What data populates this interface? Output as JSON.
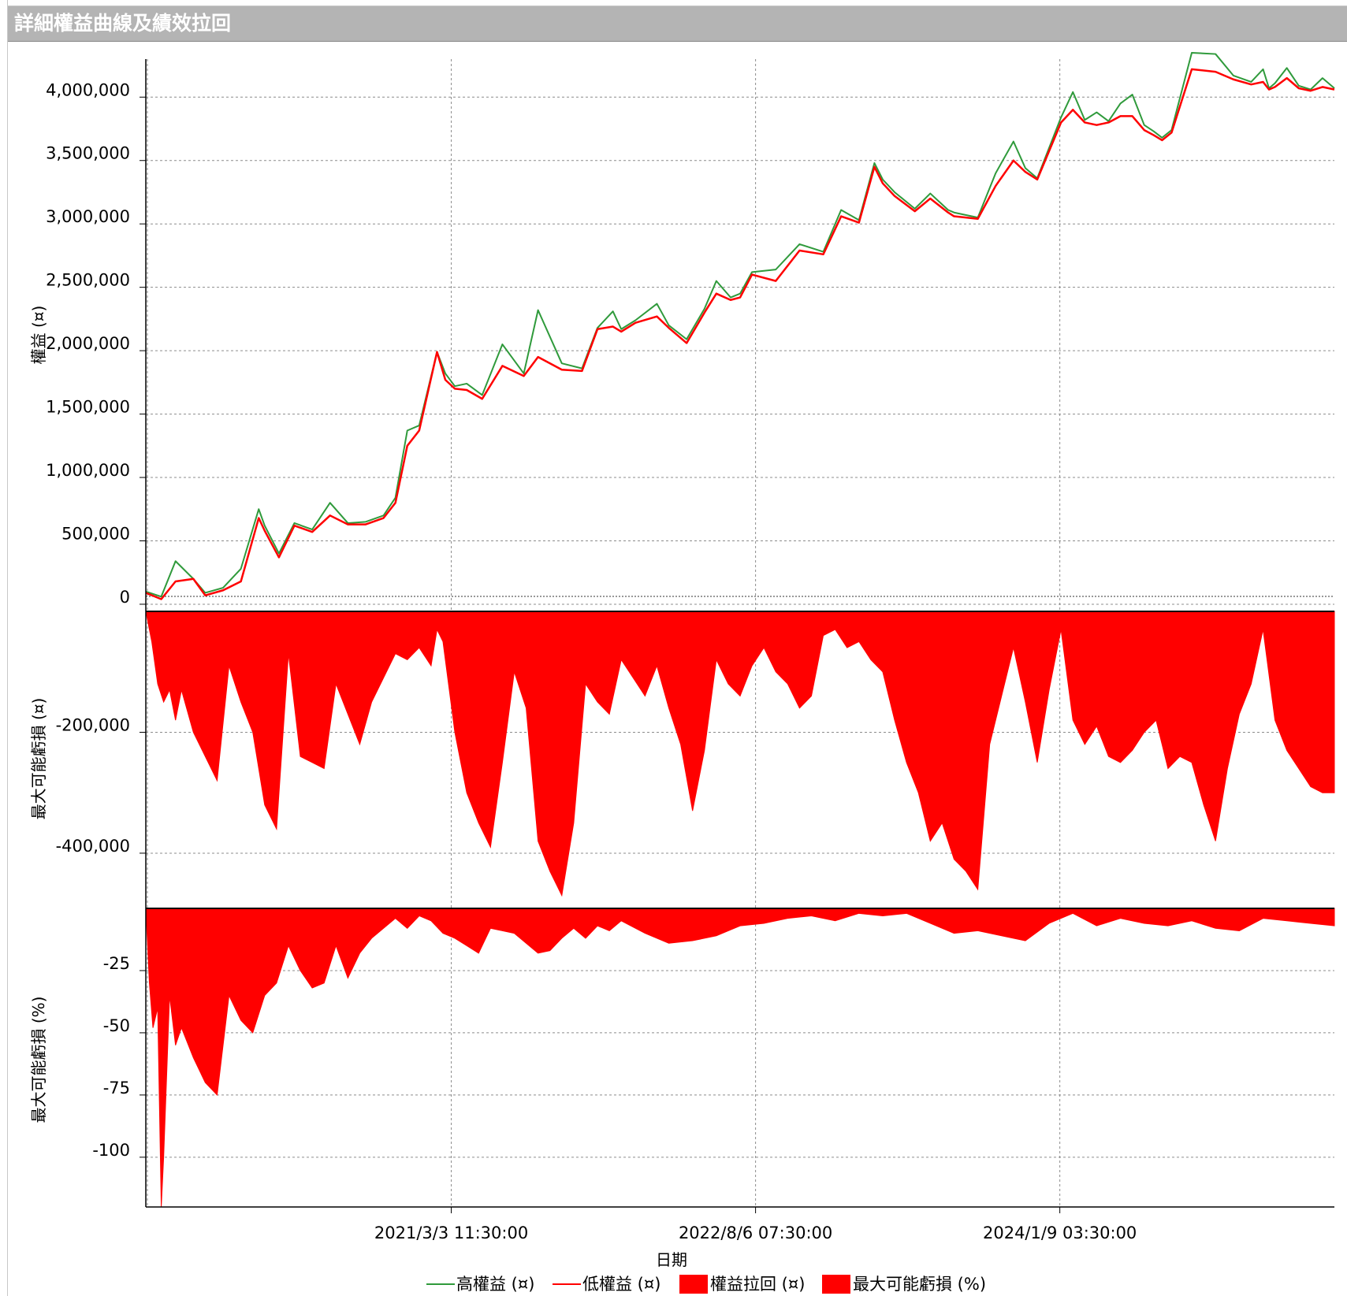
{
  "window": {
    "title": "詳細權益曲線及績效拉回"
  },
  "colors": {
    "high_equity": "#2f9a3b",
    "low_equity": "#ff0000",
    "drawdown_fill": "#ff0000",
    "grid": "#8c8c8c",
    "axis": "#000000"
  },
  "chart_data": [
    {
      "type": "line",
      "title": "",
      "ylabel": "權益 (¤)",
      "ylim": [
        -50000,
        4300000
      ],
      "yticks": [
        0,
        500000,
        1000000,
        1500000,
        2000000,
        2500000,
        3000000,
        3500000,
        4000000
      ],
      "ytick_labels": [
        "0",
        "500,000",
        "1,000,000",
        "1,500,000",
        "2,000,000",
        "2,500,000",
        "3,000,000",
        "3,500,000",
        "4,000,000"
      ],
      "x": [
        0,
        0.013,
        0.025,
        0.04,
        0.05,
        0.065,
        0.08,
        0.095,
        0.1,
        0.112,
        0.125,
        0.14,
        0.155,
        0.17,
        0.185,
        0.2,
        0.21,
        0.22,
        0.23,
        0.245,
        0.252,
        0.26,
        0.27,
        0.283,
        0.3,
        0.318,
        0.33,
        0.35,
        0.367,
        0.38,
        0.393,
        0.4,
        0.412,
        0.43,
        0.44,
        0.455,
        0.47,
        0.48,
        0.492,
        0.5,
        0.51,
        0.53,
        0.55,
        0.57,
        0.585,
        0.6,
        0.613,
        0.62,
        0.63,
        0.647,
        0.66,
        0.675,
        0.68,
        0.7,
        0.715,
        0.73,
        0.74,
        0.75,
        0.77,
        0.78,
        0.79,
        0.8,
        0.81,
        0.82,
        0.83,
        0.84,
        0.848,
        0.855,
        0.863,
        0.88,
        0.9,
        0.915,
        0.93,
        0.94,
        0.945,
        0.95,
        0.96,
        0.97,
        0.98,
        0.99,
        1.0
      ],
      "series": [
        {
          "name": "高權益 (¤)",
          "values": [
            100000,
            60000,
            340000,
            200000,
            90000,
            130000,
            280000,
            750000,
            620000,
            400000,
            640000,
            590000,
            800000,
            640000,
            650000,
            700000,
            840000,
            1370000,
            1410000,
            1990000,
            1820000,
            1720000,
            1740000,
            1650000,
            2050000,
            1820000,
            2320000,
            1900000,
            1860000,
            2180000,
            2310000,
            2170000,
            2240000,
            2370000,
            2200000,
            2090000,
            2330000,
            2550000,
            2420000,
            2450000,
            2620000,
            2640000,
            2840000,
            2780000,
            3110000,
            3030000,
            3480000,
            3350000,
            3250000,
            3120000,
            3240000,
            3110000,
            3090000,
            3050000,
            3400000,
            3650000,
            3440000,
            3360000,
            3840000,
            4040000,
            3820000,
            3880000,
            3810000,
            3950000,
            4020000,
            3780000,
            3730000,
            3680000,
            3740000,
            4350000,
            4340000,
            4170000,
            4120000,
            4220000,
            4070000,
            4110000,
            4230000,
            4090000,
            4060000,
            4150000,
            4070000
          ]
        },
        {
          "name": "低權益 (¤)",
          "values": [
            90000,
            40000,
            180000,
            200000,
            70000,
            110000,
            180000,
            680000,
            580000,
            370000,
            620000,
            570000,
            700000,
            630000,
            630000,
            680000,
            800000,
            1250000,
            1370000,
            1990000,
            1770000,
            1700000,
            1690000,
            1620000,
            1880000,
            1800000,
            1950000,
            1850000,
            1840000,
            2170000,
            2190000,
            2150000,
            2220000,
            2270000,
            2180000,
            2060000,
            2300000,
            2450000,
            2400000,
            2420000,
            2600000,
            2550000,
            2790000,
            2760000,
            3060000,
            3010000,
            3450000,
            3320000,
            3220000,
            3100000,
            3200000,
            3090000,
            3060000,
            3040000,
            3300000,
            3500000,
            3410000,
            3350000,
            3800000,
            3900000,
            3800000,
            3780000,
            3800000,
            3850000,
            3850000,
            3740000,
            3700000,
            3660000,
            3720000,
            4220000,
            4200000,
            4140000,
            4100000,
            4120000,
            4060000,
            4080000,
            4150000,
            4070000,
            4050000,
            4080000,
            4060000
          ]
        }
      ]
    },
    {
      "type": "area",
      "title": "",
      "ylabel": "最大可能虧損 (¤)",
      "ylim": [
        -490000,
        0
      ],
      "yticks": [
        -200000,
        -400000
      ],
      "ytick_labels": [
        "-200,000",
        "-400,000"
      ],
      "x": [
        0,
        0.005,
        0.01,
        0.015,
        0.02,
        0.025,
        0.03,
        0.04,
        0.05,
        0.06,
        0.07,
        0.08,
        0.09,
        0.1,
        0.11,
        0.12,
        0.13,
        0.14,
        0.15,
        0.16,
        0.17,
        0.18,
        0.19,
        0.2,
        0.21,
        0.22,
        0.23,
        0.24,
        0.245,
        0.25,
        0.26,
        0.27,
        0.28,
        0.29,
        0.3,
        0.31,
        0.32,
        0.33,
        0.34,
        0.35,
        0.36,
        0.37,
        0.38,
        0.39,
        0.4,
        0.41,
        0.42,
        0.43,
        0.44,
        0.45,
        0.46,
        0.47,
        0.48,
        0.49,
        0.5,
        0.51,
        0.52,
        0.53,
        0.54,
        0.55,
        0.56,
        0.57,
        0.58,
        0.59,
        0.6,
        0.61,
        0.62,
        0.63,
        0.64,
        0.65,
        0.66,
        0.67,
        0.68,
        0.69,
        0.7,
        0.71,
        0.72,
        0.73,
        0.74,
        0.75,
        0.76,
        0.77,
        0.78,
        0.79,
        0.8,
        0.81,
        0.82,
        0.83,
        0.84,
        0.85,
        0.86,
        0.87,
        0.88,
        0.89,
        0.9,
        0.91,
        0.92,
        0.93,
        0.94,
        0.95,
        0.96,
        0.97,
        0.98,
        0.99,
        1.0
      ],
      "series": [
        {
          "name": "權益拉回 (¤)",
          "values": [
            0,
            -50000,
            -120000,
            -150000,
            -130000,
            -180000,
            -130000,
            -200000,
            -240000,
            -280000,
            -90000,
            -150000,
            -200000,
            -320000,
            -360000,
            -70000,
            -240000,
            -250000,
            -260000,
            -120000,
            -170000,
            -220000,
            -150000,
            -110000,
            -70000,
            -80000,
            -60000,
            -90000,
            -30000,
            -50000,
            -200000,
            -300000,
            -350000,
            -390000,
            -250000,
            -100000,
            -160000,
            -380000,
            -430000,
            -470000,
            -350000,
            -120000,
            -150000,
            -170000,
            -80000,
            -110000,
            -140000,
            -90000,
            -160000,
            -220000,
            -330000,
            -230000,
            -80000,
            -120000,
            -140000,
            -90000,
            -60000,
            -100000,
            -120000,
            -160000,
            -140000,
            -40000,
            -30000,
            -60000,
            -50000,
            -80000,
            -100000,
            -180000,
            -250000,
            -300000,
            -380000,
            -350000,
            -410000,
            -430000,
            -460000,
            -220000,
            -140000,
            -60000,
            -150000,
            -250000,
            -130000,
            -30000,
            -180000,
            -220000,
            -190000,
            -240000,
            -250000,
            -230000,
            -200000,
            -180000,
            -260000,
            -240000,
            -250000,
            -320000,
            -380000,
            -260000,
            -170000,
            -120000,
            -30000,
            -180000,
            -230000,
            -260000,
            -290000,
            -300000,
            -300000
          ]
        }
      ]
    },
    {
      "type": "area",
      "title": "",
      "ylabel": "最大可能虧損 (%)",
      "ylim": [
        -120,
        0
      ],
      "yticks": [
        -25,
        -50,
        -75,
        -100
      ],
      "ytick_labels": [
        "-25",
        "-50",
        "-75",
        "-100"
      ],
      "x": [
        0,
        0.003,
        0.006,
        0.01,
        0.013,
        0.015,
        0.02,
        0.025,
        0.03,
        0.04,
        0.05,
        0.06,
        0.07,
        0.08,
        0.09,
        0.1,
        0.11,
        0.12,
        0.13,
        0.14,
        0.15,
        0.16,
        0.17,
        0.18,
        0.19,
        0.2,
        0.21,
        0.22,
        0.23,
        0.24,
        0.25,
        0.26,
        0.27,
        0.28,
        0.29,
        0.3,
        0.31,
        0.32,
        0.33,
        0.34,
        0.35,
        0.36,
        0.37,
        0.38,
        0.39,
        0.4,
        0.42,
        0.44,
        0.46,
        0.48,
        0.5,
        0.52,
        0.54,
        0.56,
        0.58,
        0.6,
        0.62,
        0.64,
        0.66,
        0.68,
        0.7,
        0.72,
        0.74,
        0.76,
        0.78,
        0.8,
        0.82,
        0.84,
        0.86,
        0.88,
        0.9,
        0.92,
        0.94,
        0.96,
        0.98,
        1.0
      ],
      "series": [
        {
          "name": "最大可能虧損 (%)",
          "values": [
            0,
            -30,
            -48,
            -40,
            -120,
            -100,
            -35,
            -55,
            -48,
            -60,
            -70,
            -75,
            -35,
            -45,
            -50,
            -35,
            -30,
            -15,
            -25,
            -32,
            -30,
            -15,
            -28,
            -18,
            -12,
            -8,
            -4,
            -8,
            -3,
            -5,
            -10,
            -12,
            -15,
            -18,
            -8,
            -9,
            -10,
            -14,
            -18,
            -17,
            -12,
            -8,
            -12,
            -7,
            -9,
            -5,
            -10,
            -14,
            -13,
            -11,
            -7,
            -6,
            -4,
            -3,
            -5,
            -2,
            -3,
            -2,
            -6,
            -10,
            -9,
            -11,
            -13,
            -6,
            -2,
            -7,
            -4,
            -6,
            -7,
            -5,
            -8,
            -9,
            -4,
            -5,
            -6,
            -7
          ]
        }
      ]
    }
  ],
  "xaxis": {
    "label": "日期",
    "ticks": [
      {
        "pos": 0.257,
        "label": "2021/3/3 11:30:00"
      },
      {
        "pos": 0.513,
        "label": "2022/8/6 07:30:00"
      },
      {
        "pos": 0.769,
        "label": "2024/1/9 03:30:00"
      }
    ]
  },
  "legend": {
    "placement": "bottom-center",
    "items": [
      {
        "label": "高權益 (¤)",
        "kind": "line",
        "color": "#2f9a3b"
      },
      {
        "label": "低權益 (¤)",
        "kind": "line",
        "color": "#ff0000"
      },
      {
        "label": "權益拉回 (¤)",
        "kind": "box",
        "color": "#ff0000"
      },
      {
        "label": "最大可能虧損 (%)",
        "kind": "box",
        "color": "#ff0000"
      }
    ]
  }
}
